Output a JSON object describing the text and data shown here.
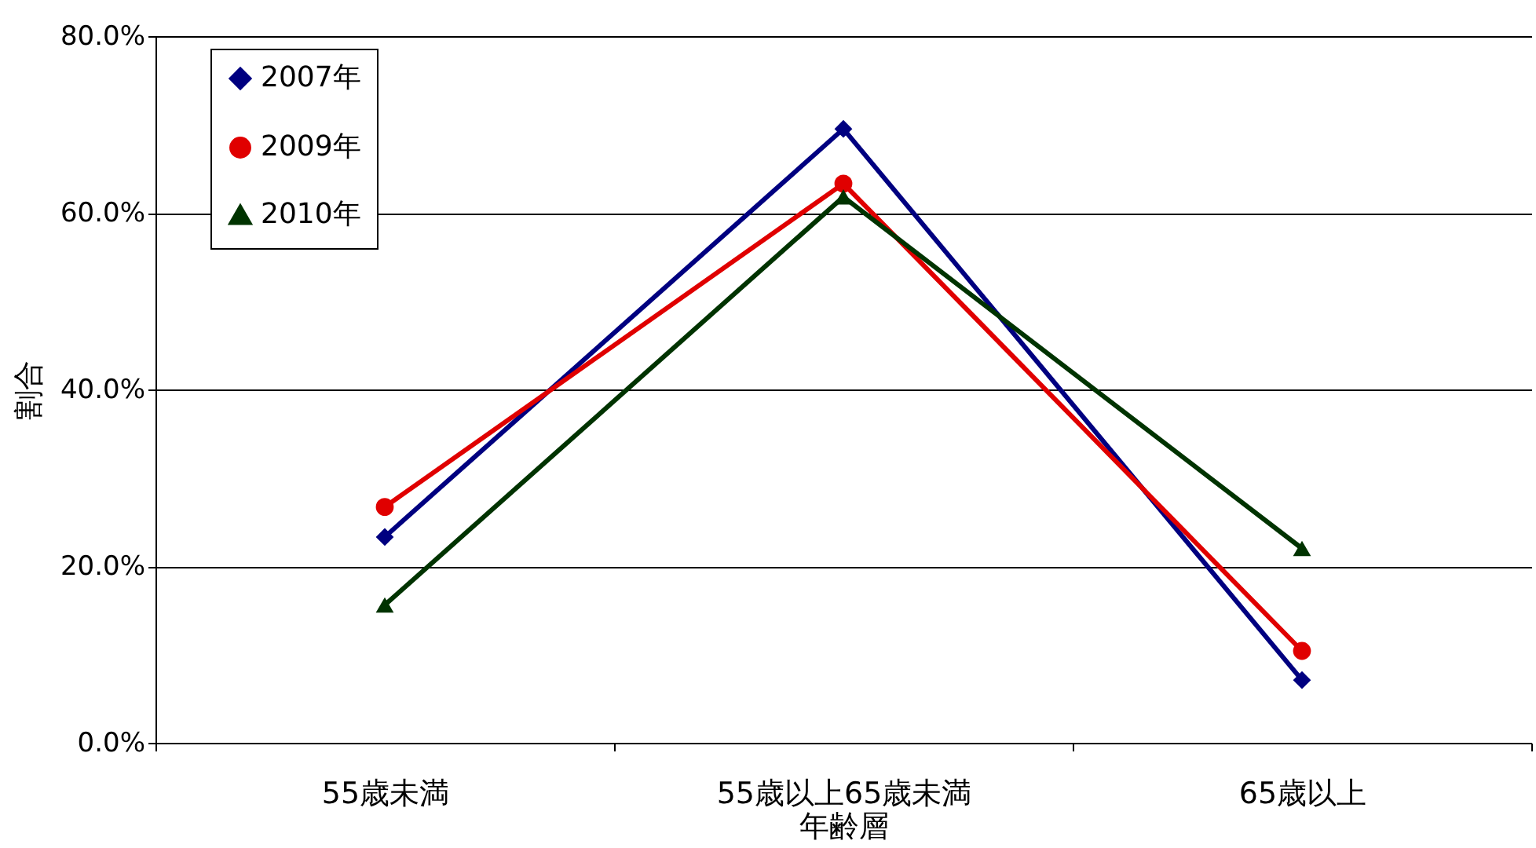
{
  "chart_data": {
    "type": "line",
    "xlabel": "年齢層",
    "ylabel": "割合",
    "categories": [
      "55歳未満",
      "55歳以上65歳未満",
      "65歳以上"
    ],
    "series": [
      {
        "name": "2007年",
        "color": "#000080",
        "marker": "diamond",
        "values": [
          23.3,
          69.5,
          7.1
        ]
      },
      {
        "name": "2009年",
        "color": "#e00000",
        "marker": "circle",
        "values": [
          26.7,
          63.3,
          10.4
        ]
      },
      {
        "name": "2010年",
        "color": "#003300",
        "marker": "triangle",
        "values": [
          15.6,
          61.8,
          22.0
        ]
      }
    ],
    "ylim": [
      0,
      80
    ],
    "yticks": [
      {
        "value": 0,
        "label": "0.0%"
      },
      {
        "value": 20,
        "label": "20.0%"
      },
      {
        "value": 40,
        "label": "40.0%"
      },
      {
        "value": 60,
        "label": "60.0%"
      },
      {
        "value": 80,
        "label": "80.0%"
      }
    ],
    "grid": "y",
    "legend": "top left",
    "line_style": "solid"
  }
}
